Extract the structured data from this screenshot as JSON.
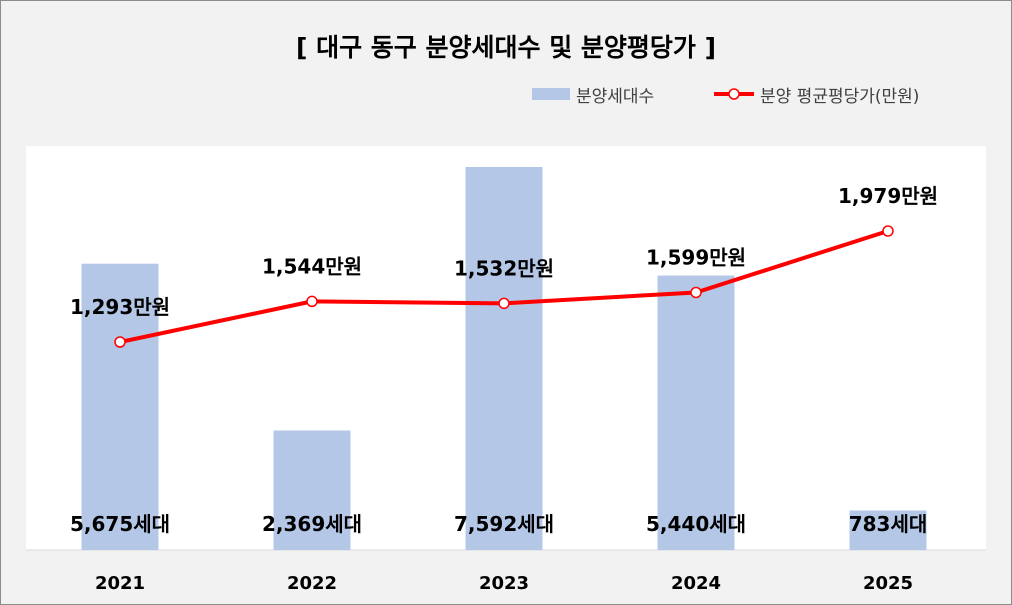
{
  "chart_data": {
    "type": "bar",
    "title": "[ 대구 동구 분양세대수 및 분양평당가 ]",
    "categories": [
      "2021",
      "2022",
      "2023",
      "2024",
      "2025"
    ],
    "series": [
      {
        "name": "분양세대수",
        "type": "bar",
        "axis": "left",
        "values": [
          5675,
          2369,
          7592,
          5440,
          783
        ],
        "labels": [
          "5,675세대",
          "2,369세대",
          "7,592세대",
          "5,440세대",
          "783세대"
        ],
        "color": "#b4c7e7"
      },
      {
        "name": "분양 평균평당가(만원)",
        "type": "line",
        "axis": "right",
        "values": [
          1293,
          1544,
          1532,
          1599,
          1979
        ],
        "labels": [
          "1,293만원",
          "1,544만원",
          "1,532만원",
          "1,599만원",
          "1,979만원"
        ],
        "color": "#ff0000"
      }
    ],
    "legend_position": "top-right",
    "grid": false
  }
}
